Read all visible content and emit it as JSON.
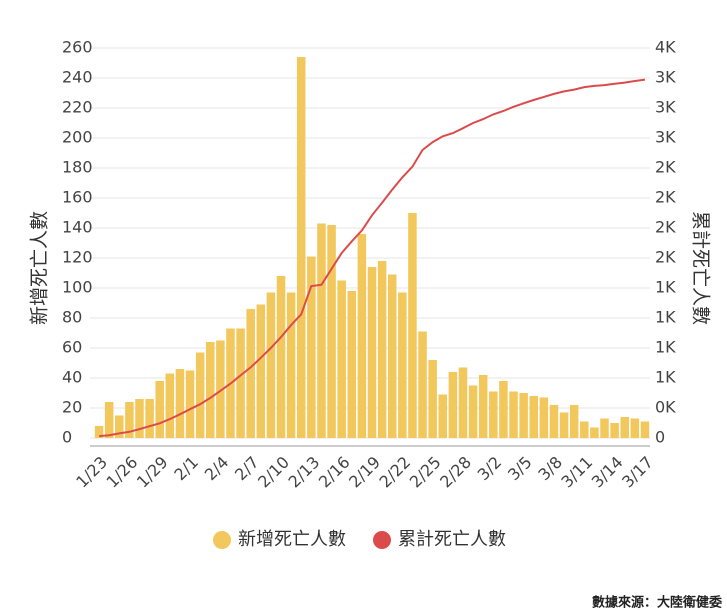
{
  "chart_data": {
    "type": "bar",
    "ylabel": "新增死亡人數",
    "y2label": "累計死亡人數",
    "source": "數據來源：大陸衛健委",
    "categories": [
      "1/23",
      null,
      null,
      "1/26",
      null,
      null,
      "1/29",
      null,
      null,
      "2/1",
      null,
      null,
      "2/4",
      null,
      null,
      "2/7",
      null,
      null,
      "2/10",
      null,
      null,
      "2/13",
      null,
      null,
      "2/16",
      null,
      null,
      "2/19",
      null,
      null,
      "2/22",
      null,
      null,
      "2/25",
      null,
      null,
      "2/28",
      null,
      null,
      "3/2",
      null,
      null,
      "3/5",
      null,
      null,
      "3/8",
      null,
      null,
      "3/11",
      null,
      null,
      "3/14",
      null,
      null,
      "3/17"
    ],
    "series": [
      {
        "name": "新增死亡人數",
        "color": "#f2c75c",
        "values": [
          8,
          24,
          15,
          24,
          26,
          26,
          38,
          43,
          46,
          45,
          57,
          64,
          65,
          73,
          73,
          86,
          89,
          97,
          108,
          97,
          254,
          121,
          143,
          142,
          105,
          98,
          136,
          114,
          118,
          109,
          97,
          150,
          71,
          52,
          29,
          44,
          47,
          35,
          42,
          31,
          38,
          31,
          30,
          28,
          27,
          22,
          17,
          22,
          11,
          7,
          13,
          10,
          14,
          13,
          11
        ]
      },
      {
        "name": "累計死亡人數",
        "color": "#dc4b4b",
        "type": "line",
        "axis": "y2",
        "values": [
          17,
          25,
          41,
          56,
          80,
          106,
          132,
          170,
          213,
          259,
          304,
          361,
          425,
          490,
          563,
          636,
          722,
          811,
          908,
          1016,
          1113,
          1367,
          1380,
          1523,
          1665,
          1770,
          1868,
          2004,
          2118,
          2236,
          2345,
          2442,
          2592,
          2663,
          2715,
          2744,
          2788,
          2835,
          2870,
          2912,
          2943,
          2981,
          3012,
          3042,
          3070,
          3097,
          3119,
          3136,
          3158,
          3169,
          3176,
          3189,
          3199,
          3213,
          3226
        ]
      }
    ],
    "ylim": [
      0,
      260
    ],
    "yticks": [
      0,
      20,
      40,
      60,
      80,
      100,
      120,
      140,
      160,
      180,
      200,
      220,
      240,
      260
    ],
    "y2lim": [
      0,
      3510
    ],
    "y2ticks": [
      0,
      {
        "value": 270,
        "label": "0K"
      },
      {
        "value": 540,
        "label": "1K"
      },
      {
        "value": 810,
        "label": "1K"
      },
      {
        "value": 1080,
        "label": "1K"
      },
      {
        "value": 1350,
        "label": "1K"
      },
      {
        "value": 1620,
        "label": "2K"
      },
      {
        "value": 1890,
        "label": "2K"
      },
      {
        "value": 2160,
        "label": "2K"
      },
      {
        "value": 2430,
        "label": "2K"
      },
      {
        "value": 2700,
        "label": "3K"
      },
      {
        "value": 2970,
        "label": "3K"
      },
      {
        "value": 3240,
        "label": "3K"
      },
      {
        "value": 3510,
        "label": "4K"
      }
    ],
    "grid": true,
    "legend": "bottom"
  }
}
